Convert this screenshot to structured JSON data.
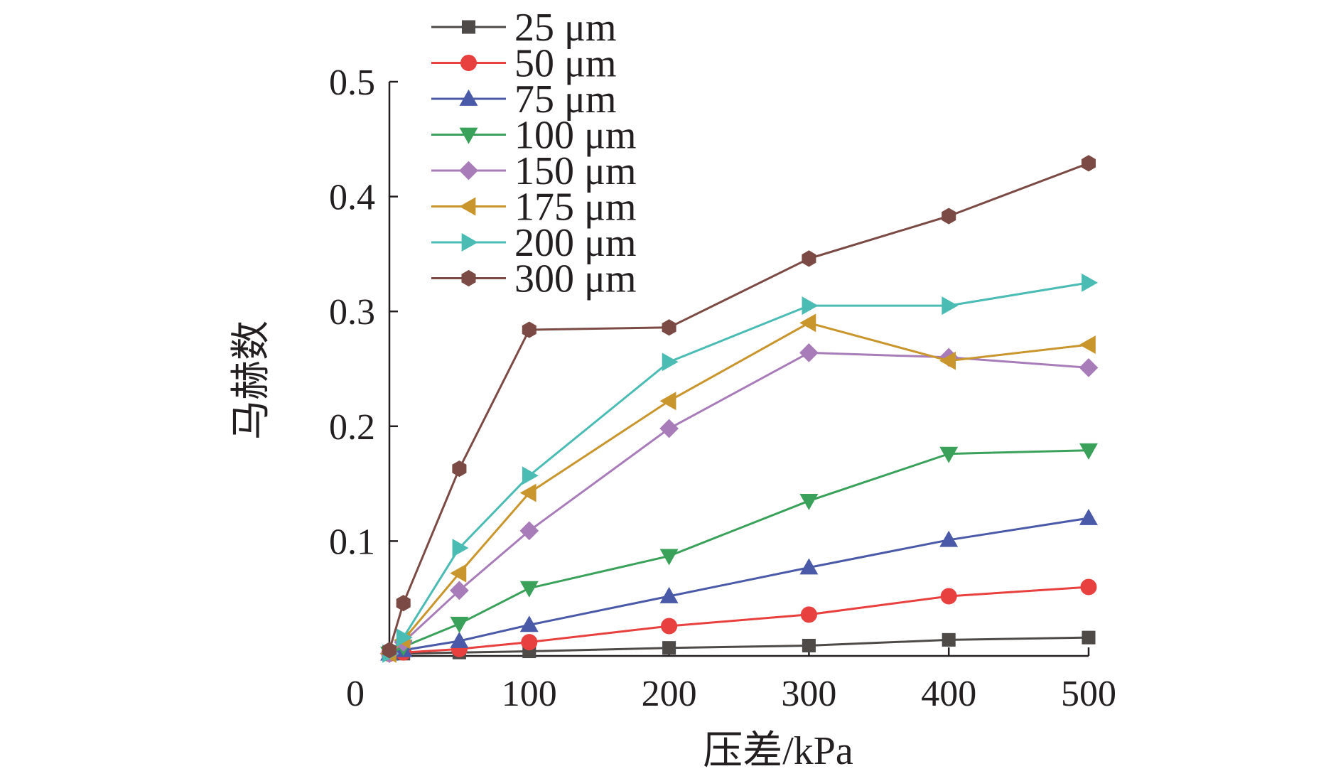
{
  "chart_data": {
    "type": "line",
    "title": "",
    "xlabel": "压差/kPa",
    "ylabel": "马赫数",
    "xlim": [
      0,
      500
    ],
    "ylim": [
      0,
      0.5
    ],
    "x_ticks": [
      0,
      100,
      200,
      300,
      400,
      500
    ],
    "x_tick_labels": [
      "0",
      "100",
      "200",
      "300",
      "400",
      "500"
    ],
    "y_ticks": [
      0.1,
      0.2,
      0.3,
      0.4,
      0.5
    ],
    "y_tick_labels": [
      "0.1",
      "0.2",
      "0.3",
      "0.4",
      "0.5"
    ],
    "grid": false,
    "legend_position": "top-left",
    "series": [
      {
        "name": "25 μm",
        "color": "#4d4a48",
        "marker": "square",
        "x": [
          0,
          10,
          50,
          100,
          200,
          300,
          400,
          500
        ],
        "y": [
          0.002,
          0.002,
          0.003,
          0.004,
          0.007,
          0.009,
          0.014,
          0.016
        ]
      },
      {
        "name": "50 μm",
        "color": "#e8403e",
        "marker": "circle",
        "x": [
          0,
          10,
          50,
          100,
          200,
          300,
          400,
          500
        ],
        "y": [
          0.002,
          0.003,
          0.006,
          0.012,
          0.026,
          0.036,
          0.052,
          0.06
        ]
      },
      {
        "name": "75 μm",
        "color": "#4a5aa8",
        "marker": "triangle-up",
        "x": [
          0,
          10,
          50,
          100,
          200,
          300,
          400,
          500
        ],
        "y": [
          0.002,
          0.005,
          0.013,
          0.027,
          0.052,
          0.077,
          0.101,
          0.12
        ]
      },
      {
        "name": "100 μm",
        "color": "#3aa15a",
        "marker": "triangle-down",
        "x": [
          0,
          10,
          50,
          100,
          200,
          300,
          400,
          500
        ],
        "y": [
          0.002,
          0.008,
          0.028,
          0.059,
          0.087,
          0.135,
          0.176,
          0.179
        ]
      },
      {
        "name": "150 μm",
        "color": "#a77cb8",
        "marker": "diamond",
        "x": [
          0,
          10,
          50,
          100,
          200,
          300,
          400,
          500
        ],
        "y": [
          0.002,
          0.012,
          0.057,
          0.109,
          0.198,
          0.264,
          0.26,
          0.251
        ]
      },
      {
        "name": "175 μm",
        "color": "#c9962e",
        "marker": "triangle-left",
        "x": [
          0,
          10,
          50,
          100,
          200,
          300,
          400,
          500
        ],
        "y": [
          0.002,
          0.014,
          0.072,
          0.142,
          0.222,
          0.29,
          0.257,
          0.271
        ]
      },
      {
        "name": "200 μm",
        "color": "#4bbcb4",
        "marker": "triangle-right",
        "x": [
          0,
          10,
          50,
          100,
          200,
          300,
          400,
          500
        ],
        "y": [
          0.002,
          0.016,
          0.094,
          0.157,
          0.256,
          0.305,
          0.305,
          0.325
        ]
      },
      {
        "name": "300 μm",
        "color": "#7b4a44",
        "marker": "hexagon",
        "x": [
          0,
          10,
          50,
          100,
          200,
          300,
          400,
          500
        ],
        "y": [
          0.005,
          0.046,
          0.163,
          0.284,
          0.286,
          0.346,
          0.383,
          0.429
        ]
      }
    ]
  }
}
